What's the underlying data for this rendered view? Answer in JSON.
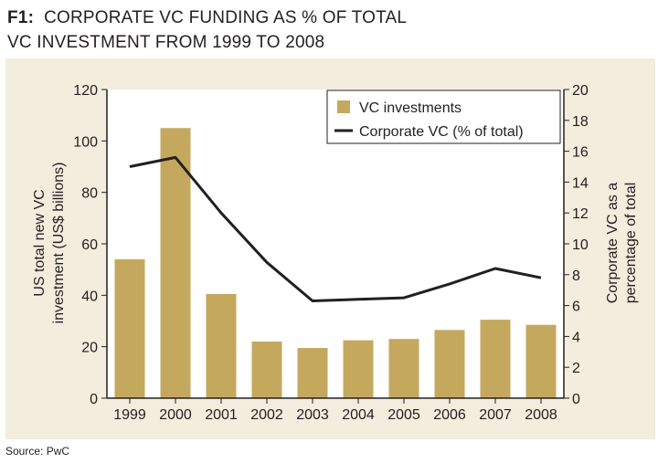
{
  "title": {
    "prefix": "F1:",
    "line1": "CORPORATE VC FUNDING AS % OF TOTAL",
    "line2": "VC INVESTMENT FROM 1999 TO 2008"
  },
  "source": "Source: PwC",
  "colors": {
    "bar": "#c4a85e",
    "line": "#231f20",
    "panel": "#f2eddc"
  },
  "chart_data": {
    "type": "bar",
    "categories": [
      "1999",
      "2000",
      "2001",
      "2002",
      "2003",
      "2004",
      "2005",
      "2006",
      "2007",
      "2008"
    ],
    "series": [
      {
        "name": "VC investments",
        "type": "bar",
        "axis": "left",
        "values": [
          54,
          105,
          40.5,
          22,
          19.5,
          22.5,
          23,
          26.5,
          30.5,
          28.5
        ]
      },
      {
        "name": "Corporate VC (% of total)",
        "type": "line",
        "axis": "right",
        "values": [
          15.0,
          15.6,
          12.0,
          8.8,
          6.3,
          6.4,
          6.5,
          7.4,
          8.4,
          7.8
        ]
      }
    ],
    "y_left": {
      "label_line1": "US total new VC",
      "label_line2": "investment (US$ billions)",
      "ylim": [
        0,
        120
      ],
      "ticks": [
        "0",
        "20",
        "40",
        "60",
        "80",
        "100",
        "120"
      ]
    },
    "y_right": {
      "label_line1": "Corporate VC as a",
      "label_line2": "percentage of total",
      "ylim": [
        0,
        20
      ],
      "ticks": [
        "0",
        "2",
        "4",
        "6",
        "8",
        "10",
        "12",
        "14",
        "16",
        "18",
        "20"
      ]
    },
    "legend": {
      "placement": "top-right",
      "bar_label": "VC investments",
      "line_label": "Corporate VC (% of total)"
    }
  }
}
